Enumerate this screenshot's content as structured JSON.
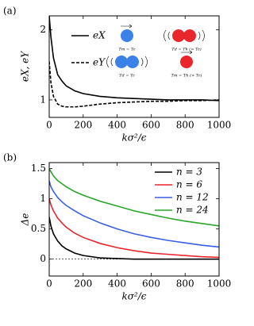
{
  "chart_data": [
    {
      "type": "line",
      "label": "(a)",
      "xlabel": "kσ²/ϵ",
      "ylabel": "eX, eY",
      "x": [
        0,
        10,
        25,
        50,
        75,
        100,
        150,
        200,
        300,
        400,
        500,
        600,
        700,
        800,
        900,
        1000
      ],
      "series": [
        {
          "name": "eX",
          "color": "#000000",
          "dash": false,
          "values": [
            2.2,
            1.9,
            1.6,
            1.36,
            1.27,
            1.2,
            1.13,
            1.09,
            1.05,
            1.03,
            1.02,
            1.01,
            1.0,
            1.0,
            1.0,
            0.99
          ]
        },
        {
          "name": "eY",
          "color": "#000000",
          "dash": true,
          "values": [
            1.55,
            1.25,
            1.05,
            0.94,
            0.91,
            0.9,
            0.9,
            0.91,
            0.94,
            0.96,
            0.97,
            0.98,
            0.98,
            0.99,
            0.99,
            1.0
          ]
        }
      ],
      "annotations": [
        "Tm = Tc",
        "Td = Th (> Tc)",
        "Td = Tc",
        "Tm = Th (> Tc)"
      ],
      "xlim": [
        0,
        1000
      ],
      "xticks": [
        0,
        200,
        400,
        600,
        800,
        1000
      ],
      "ylim": [
        0.75,
        2.2
      ],
      "yticks": [
        1,
        2
      ]
    },
    {
      "type": "line",
      "label": "(b)",
      "xlabel": "kσ²/ϵ",
      "ylabel": "Δe",
      "x": [
        0,
        10,
        25,
        50,
        75,
        100,
        150,
        200,
        300,
        400,
        500,
        600,
        700,
        800,
        900,
        1000
      ],
      "series": [
        {
          "name": "n = 3",
          "color": "#000000",
          "dash": false,
          "values": [
            0.7,
            0.55,
            0.42,
            0.3,
            0.22,
            0.17,
            0.1,
            0.06,
            0.02,
            0.01,
            0,
            0,
            0,
            0,
            0,
            0
          ]
        },
        {
          "name": "n = 6",
          "color": "#e8262b",
          "dash": false,
          "values": [
            1.0,
            0.9,
            0.8,
            0.68,
            0.6,
            0.53,
            0.43,
            0.36,
            0.26,
            0.19,
            0.14,
            0.1,
            0.08,
            0.06,
            0.04,
            0.03
          ]
        },
        {
          "name": "n = 12",
          "color": "#3a5fe0",
          "dash": false,
          "values": [
            1.3,
            1.2,
            1.12,
            1.02,
            0.95,
            0.89,
            0.8,
            0.72,
            0.6,
            0.5,
            0.42,
            0.36,
            0.31,
            0.27,
            0.23,
            0.2
          ]
        },
        {
          "name": "n = 24",
          "color": "#2aa62a",
          "dash": false,
          "values": [
            1.5,
            1.45,
            1.38,
            1.3,
            1.25,
            1.2,
            1.12,
            1.06,
            0.96,
            0.88,
            0.8,
            0.74,
            0.68,
            0.63,
            0.59,
            0.55
          ]
        }
      ],
      "reference_line": 0,
      "xlim": [
        0,
        1000
      ],
      "xticks": [
        0,
        200,
        400,
        600,
        800,
        1000
      ],
      "ylim": [
        -0.28,
        1.6
      ],
      "yticks": [
        0,
        0.5,
        1,
        1.5
      ]
    }
  ]
}
